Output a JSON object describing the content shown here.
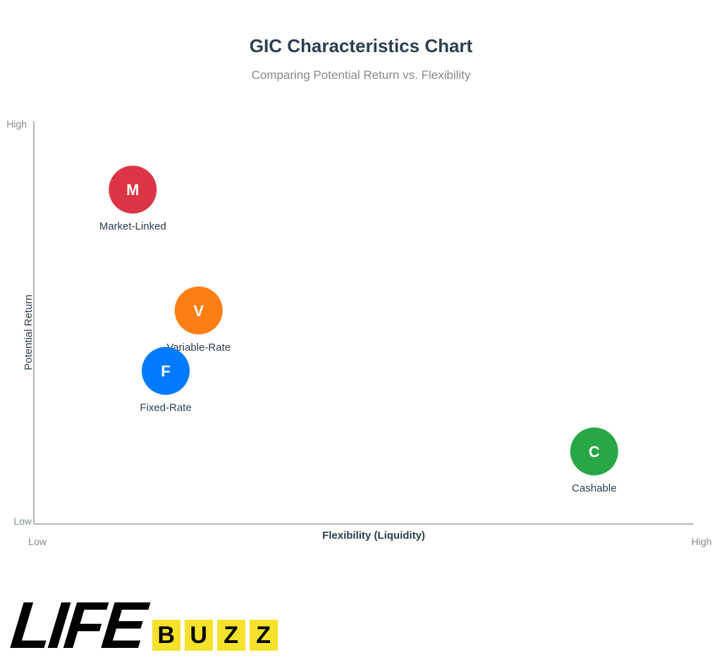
{
  "chart_data": {
    "type": "scatter",
    "title": "GIC Characteristics Chart",
    "subtitle": "Comparing Potential Return vs. Flexibility",
    "xlabel": "Flexibility (Liquidity)",
    "ylabel": "Potential Return",
    "x_ticks": [
      "Low",
      "High"
    ],
    "y_ticks": [
      "Low",
      "High"
    ],
    "xlim": [
      0,
      100
    ],
    "ylim": [
      0,
      100
    ],
    "grid": false,
    "points": [
      {
        "name": "Market-Linked",
        "marker": "M",
        "x": 15,
        "y": 83,
        "color": "#dc3545"
      },
      {
        "name": "Variable-Rate",
        "marker": "V",
        "x": 25,
        "y": 53,
        "color": "#fd7e14"
      },
      {
        "name": "Fixed-Rate",
        "marker": "F",
        "x": 20,
        "y": 38,
        "color": "#007bff"
      },
      {
        "name": "Cashable",
        "marker": "C",
        "x": 85,
        "y": 18,
        "color": "#28a745"
      }
    ]
  },
  "logo": {
    "word": "LIFE",
    "badge_letters": [
      "B",
      "U",
      "Z",
      "Z"
    ],
    "badge_color": "#f7e22b"
  }
}
